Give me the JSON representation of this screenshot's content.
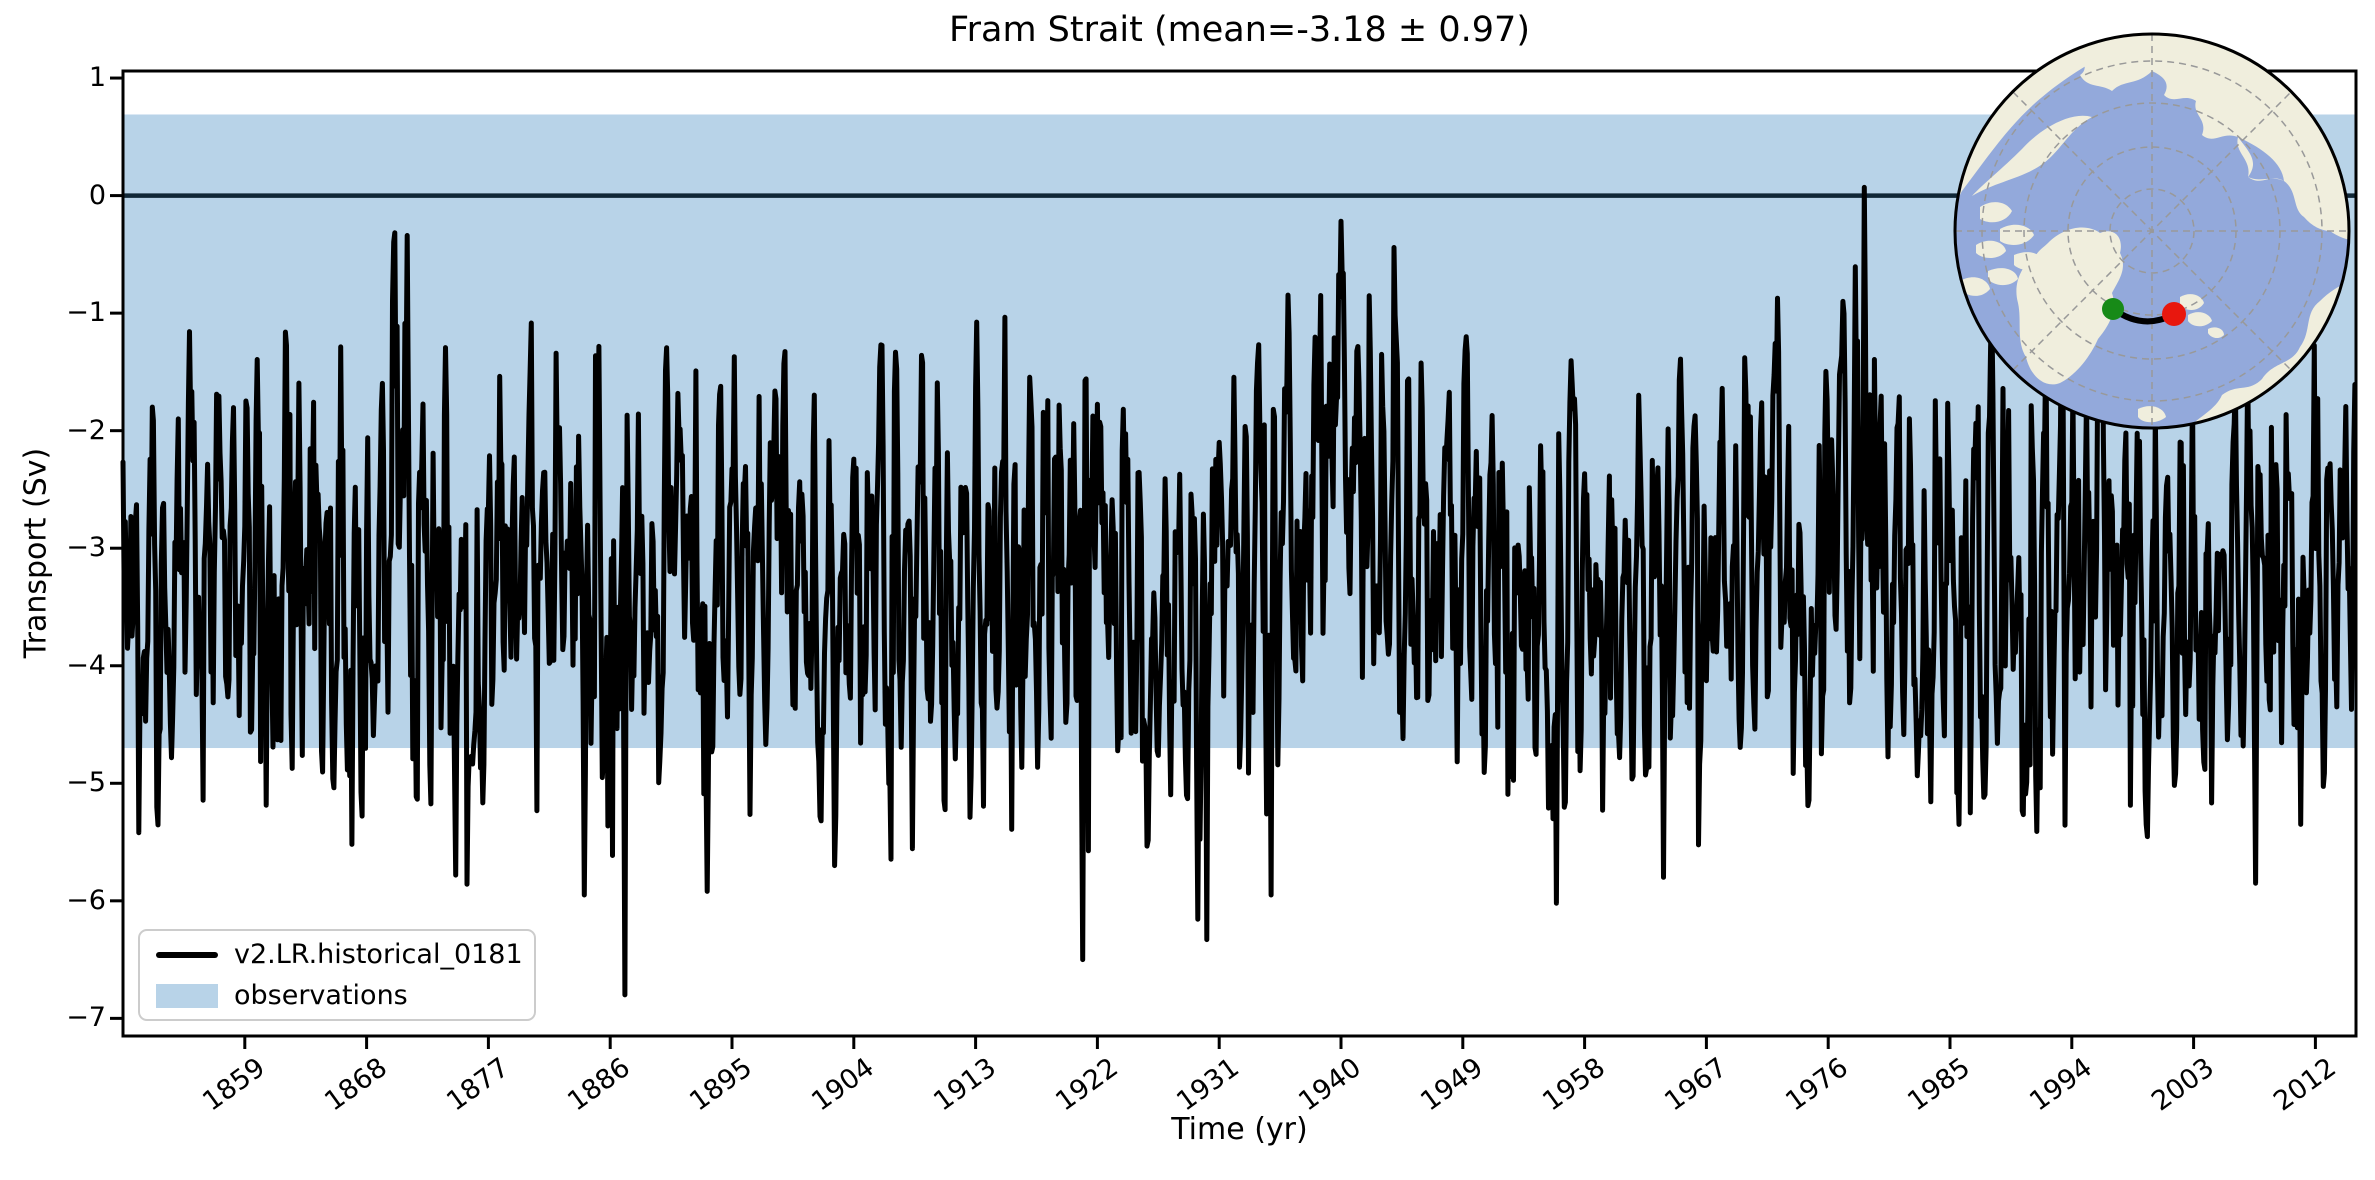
{
  "figure": {
    "title": "Fram Strait (mean=-3.18 ± 0.97)",
    "xlabel": "Time (yr)",
    "ylabel": "Transport (Sv)"
  },
  "legend": {
    "items": [
      {
        "label": "v2.LR.historical_0181",
        "swatch": "line",
        "color": "#000000"
      },
      {
        "label": "observations",
        "swatch": "patch",
        "color": "#b8d3e8"
      }
    ]
  },
  "chart_data": {
    "type": "line",
    "title": "Fram Strait (mean=-3.18 ± 0.97)",
    "xlabel": "Time (yr)",
    "ylabel": "Transport (Sv)",
    "xlim": [
      1850,
      2015
    ],
    "ylim": [
      -7.15,
      1.06
    ],
    "grid": false,
    "legend_position": "lower left",
    "xticks": [
      1859,
      1868,
      1877,
      1886,
      1895,
      1904,
      1913,
      1922,
      1931,
      1940,
      1949,
      1958,
      1967,
      1976,
      1985,
      1994,
      2003,
      2012
    ],
    "xtick_labels": [
      "1859",
      "1868",
      "1877",
      "1886",
      "1895",
      "1904",
      "1913",
      "1922",
      "1931",
      "1940",
      "1949",
      "1958",
      "1967",
      "1976",
      "1985",
      "1994",
      "2003",
      "2012"
    ],
    "yticks": [
      1,
      0,
      -1,
      -2,
      -3,
      -4,
      -5,
      -6,
      -7
    ],
    "ytick_labels": [
      "1",
      "0",
      "−1",
      "−2",
      "−3",
      "−4",
      "−5",
      "−6",
      "−7"
    ],
    "zero_line": {
      "y": 0,
      "color": "#102737",
      "width": 4.5
    },
    "observations_band": {
      "label": "observations",
      "y_min": -4.7,
      "y_max": 0.69,
      "color": "#b8d3e8"
    },
    "series": [
      {
        "name": "v2.LR.historical_0181",
        "color": "#000000",
        "line_width": 5,
        "kind": "monthly_timeseries",
        "x_start": 1850.0,
        "x_end": 2014.92,
        "n_points": 1980,
        "mean": -3.18,
        "std": 0.97,
        "observed_min": {
          "year": 1887,
          "value": -6.8
        },
        "observed_max": {
          "year": 1978.7,
          "value": 0.07
        },
        "generator": {
          "seed": 20181,
          "base_mean": -3.3,
          "ar1_phi": 0.58,
          "noise_sigma": 0.62,
          "season_amp_min": 0.55,
          "season_amp_rand": 0.55,
          "ceiling": -0.65,
          "floor": -5.25,
          "decadal_bumps": [
            {
              "c": 1940.0,
              "w": 3.2,
              "a": 0.95
            },
            {
              "c": 1977.8,
              "w": 2.2,
              "a": 0.75
            },
            {
              "c": 1887.3,
              "w": 1.2,
              "a": -0.45
            },
            {
              "c": 1927.5,
              "w": 3.5,
              "a": -0.3
            },
            {
              "c": 1871.5,
              "w": 2.5,
              "a": 0.25
            },
            {
              "c": 1996.0,
              "w": 2.0,
              "a": 0.3
            },
            {
              "c": 1906.0,
              "w": 2.3,
              "a": 0.2
            }
          ],
          "extreme_events": [
            {
              "year": 1851.2,
              "value": -5.42
            },
            {
              "year": 1866.9,
              "value": -5.52
            },
            {
              "year": 1884.1,
              "value": -5.95
            },
            {
              "year": 1887.05,
              "value": -6.8
            },
            {
              "year": 1893.2,
              "value": -5.92
            },
            {
              "year": 1902.6,
              "value": -5.7
            },
            {
              "year": 1920.9,
              "value": -6.5
            },
            {
              "year": 1930.1,
              "value": -6.33
            },
            {
              "year": 1934.8,
              "value": -5.95
            },
            {
              "year": 1938.5,
              "value": -0.85
            },
            {
              "year": 1940.2,
              "value": -0.66
            },
            {
              "year": 1955.9,
              "value": -6.02
            },
            {
              "year": 1963.8,
              "value": -5.8
            },
            {
              "year": 1977.1,
              "value": -0.9
            },
            {
              "year": 1978.7,
              "value": 0.07
            },
            {
              "year": 2007.6,
              "value": -5.85
            },
            {
              "year": 2010.9,
              "value": -5.35
            }
          ]
        }
      }
    ]
  },
  "inset_map": {
    "projection": "north-polar-stereographic",
    "ocean_color": "#93a9db",
    "land_color": "#f0eedd",
    "border_color": "#000000",
    "graticule_color": "#999999",
    "transect": {
      "name": "Fram Strait section",
      "line_color": "#000000",
      "start_point_color": "#178a17",
      "end_point_color": "#e8170e"
    }
  }
}
